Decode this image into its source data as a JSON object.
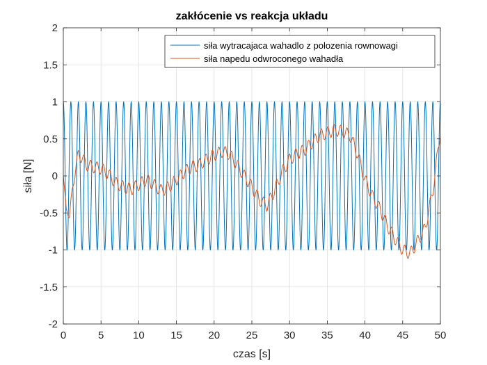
{
  "chart_data": {
    "type": "line",
    "title": "zakłócenie vs reakcja układu",
    "xlabel": "czas [s]",
    "ylabel": "siła [N]",
    "xlim": [
      0,
      50
    ],
    "ylim": [
      -2,
      2
    ],
    "xticks": [
      0,
      5,
      10,
      15,
      20,
      25,
      30,
      35,
      40,
      45,
      50
    ],
    "xtick_labels": [
      "0",
      "5",
      "10",
      "15",
      "20",
      "25",
      "30",
      "35",
      "40",
      "45",
      "50"
    ],
    "yticks": [
      -2,
      -1.5,
      -1,
      -0.5,
      0,
      0.5,
      1,
      1.5,
      2
    ],
    "ytick_labels": [
      "-2",
      "-1.5",
      "-1",
      "-0.5",
      "0",
      "0.5",
      "1",
      "1.5",
      "2"
    ],
    "grid": true,
    "legend_position": "top-right",
    "series": [
      {
        "name": "siła wytracajaca wahadlo z polozenia rownowagi",
        "color": "#0072BD",
        "kind": "sinusoid",
        "amplitude": 1,
        "period": 1,
        "phase_cycles": 0.25
      },
      {
        "name": "siła napedu odwroconego wahadła",
        "color": "#D95319",
        "kind": "sampled",
        "x": [
          0,
          0.4,
          0.8,
          1.2,
          1.6,
          2,
          2.5,
          3,
          4,
          5,
          6,
          7,
          8,
          9,
          10,
          11,
          12,
          13,
          14,
          15,
          16,
          17,
          18,
          19,
          20,
          21,
          22,
          23,
          24,
          25,
          26,
          27,
          28,
          29,
          30,
          31,
          32,
          33,
          34,
          35,
          36,
          37,
          38,
          39,
          40,
          41,
          42,
          43,
          44,
          45,
          46,
          47,
          48,
          49,
          49.5,
          50
        ],
        "y": [
          0,
          -0.45,
          -0.55,
          -0.2,
          0.1,
          0.28,
          0.25,
          0.15,
          0.12,
          0.1,
          0.02,
          -0.1,
          -0.15,
          -0.18,
          -0.12,
          -0.05,
          -0.12,
          -0.2,
          -0.15,
          -0.05,
          0.05,
          0.12,
          0.15,
          0.22,
          0.28,
          0.33,
          0.3,
          0.15,
          0.0,
          -0.15,
          -0.32,
          -0.4,
          -0.2,
          0.05,
          0.22,
          0.3,
          0.35,
          0.45,
          0.55,
          0.58,
          0.62,
          0.6,
          0.55,
          0.3,
          -0.05,
          -0.28,
          -0.45,
          -0.68,
          -0.85,
          -1.0,
          -1.05,
          -0.88,
          -0.7,
          -0.2,
          0.2,
          0.6
        ],
        "ripple_amplitude": 0.08,
        "ripple_period": 0.85
      }
    ]
  }
}
